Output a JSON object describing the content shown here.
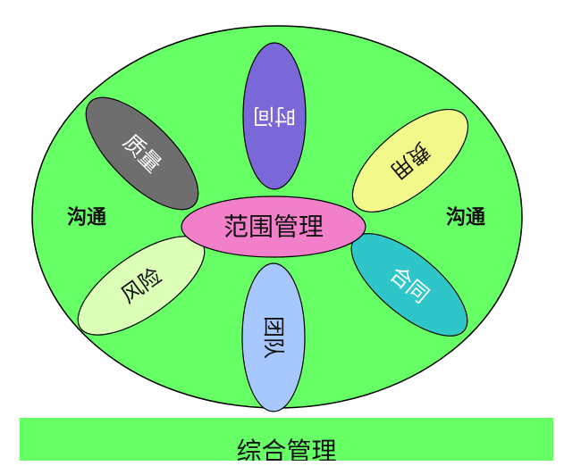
{
  "diagram": {
    "center": {
      "label": "范围管理",
      "color": "#f27fc9"
    },
    "outer_color": "#66ff66",
    "left_side_label": "沟通",
    "right_side_label": "沟通",
    "petals": {
      "time": {
        "label": "时间",
        "color": "#7b68d8",
        "text_color": "#ffffff"
      },
      "quality": {
        "label": "质量",
        "color": "#6e6e6e",
        "text_color": "#ffffff"
      },
      "cost": {
        "label": "费用",
        "color": "#f3f88a",
        "text_color": "#111111"
      },
      "risk": {
        "label": "风险",
        "color": "#dcffb8",
        "text_color": "#111111"
      },
      "contract": {
        "label": "合同",
        "color": "#2fc6c9",
        "text_color": "#ffffff"
      },
      "team": {
        "label": "团队",
        "color": "#a6c8ff",
        "text_color": "#111111"
      }
    },
    "bottom_bar_label": "综合管理"
  }
}
